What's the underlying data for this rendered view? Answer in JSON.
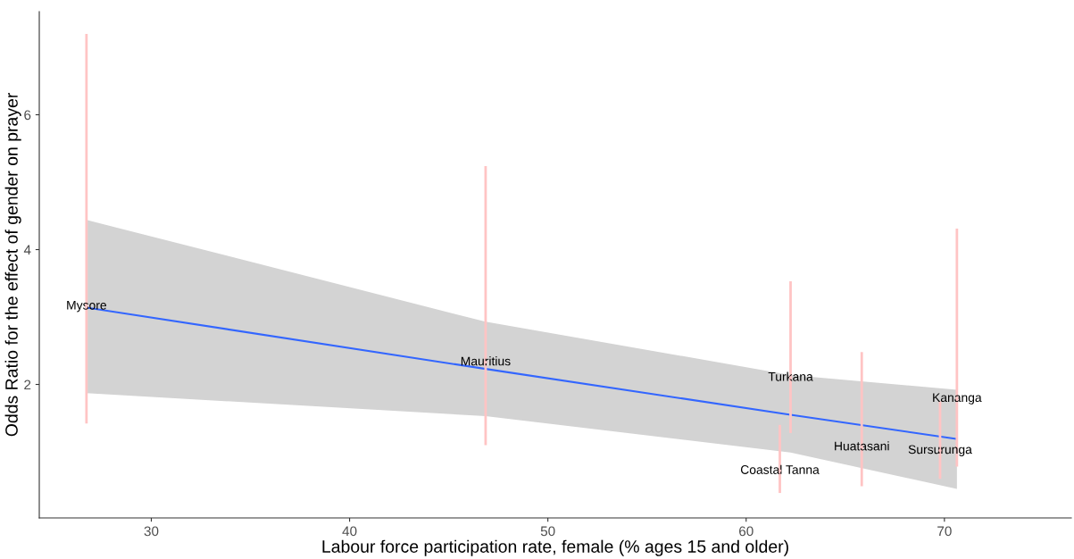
{
  "chart_data": {
    "type": "scatter",
    "xlabel": "Labour force participation rate, female (% ages 15 and older)",
    "ylabel": "Odds Ratio for the effect of gender on prayer",
    "xlim": [
      24.35,
      76.4
    ],
    "ylim": [
      0.02,
      7.53
    ],
    "xticks": [
      30,
      40,
      50,
      60,
      70
    ],
    "yticks": [
      2,
      4,
      6
    ],
    "grid": false,
    "legend": false,
    "series": [
      {
        "marker": "circle",
        "color": "#ffc4c4",
        "x": [
          26.73,
          46.86,
          61.7,
          62.24,
          65.83,
          69.78,
          70.63
        ],
        "values": [
          3.16,
          2.33,
          0.72,
          2.1,
          1.07,
          1.02,
          1.79
        ],
        "errors": [
          [
            1.42,
            7.2
          ],
          [
            1.1,
            5.24
          ],
          [
            0.39,
            1.4
          ],
          [
            1.28,
            3.53
          ],
          [
            0.49,
            2.48
          ],
          [
            0.6,
            1.75
          ],
          [
            0.78,
            4.31
          ]
        ]
      },
      {
        "type": "line",
        "marker": "none",
        "line_style": "solid",
        "color": "#3366ff",
        "x": [
          26.73,
          46.86,
          62.24,
          70.63
        ],
        "values": [
          3.14,
          2.23,
          1.55,
          1.19
        ],
        "lower": [
          1.87,
          1.53,
          0.99,
          0.45
        ],
        "upper": [
          4.44,
          2.93,
          2.14,
          1.92
        ]
      }
    ],
    "annotations": [
      {
        "text": "Mysore",
        "x": 26.73,
        "y": 3.16
      },
      {
        "text": "Mauritius",
        "x": 46.86,
        "y": 2.33
      },
      {
        "text": "Coastal Tanna",
        "x": 61.7,
        "y": 0.72
      },
      {
        "text": "Turkana",
        "x": 62.24,
        "y": 2.1
      },
      {
        "text": "Huatasani",
        "x": 65.83,
        "y": 1.07
      },
      {
        "text": "Sursurunga",
        "x": 69.78,
        "y": 1.02
      },
      {
        "text": "Kananga",
        "x": 70.63,
        "y": 1.79
      }
    ]
  }
}
